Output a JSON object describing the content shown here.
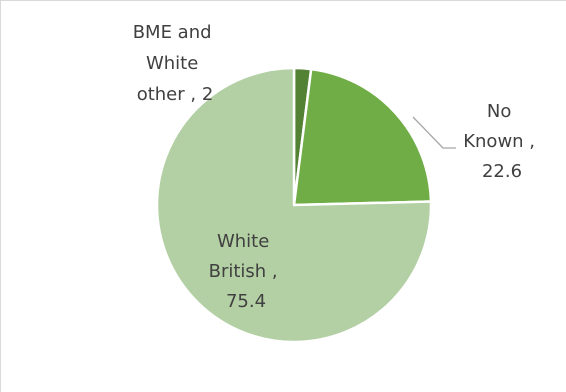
{
  "chart_data": {
    "type": "pie",
    "categories": [
      "BME and White other",
      "No Known",
      "White British"
    ],
    "values": [
      2,
      22.6,
      75.4
    ],
    "colors": [
      "#548235",
      "#70ad47",
      "#b3cfa4"
    ],
    "start_angle_deg": 0,
    "direction": "clockwise",
    "label_separator": " , ",
    "labels": {
      "bme": {
        "line1": "BME and",
        "line2": "White",
        "line3": "other , 2"
      },
      "noknown": {
        "line1": "No",
        "line2": "Known ,",
        "line3": "22.6"
      },
      "white": {
        "line1": "White",
        "line2": "British ,",
        "line3": "75.4"
      }
    },
    "title": "",
    "legend": "none"
  }
}
